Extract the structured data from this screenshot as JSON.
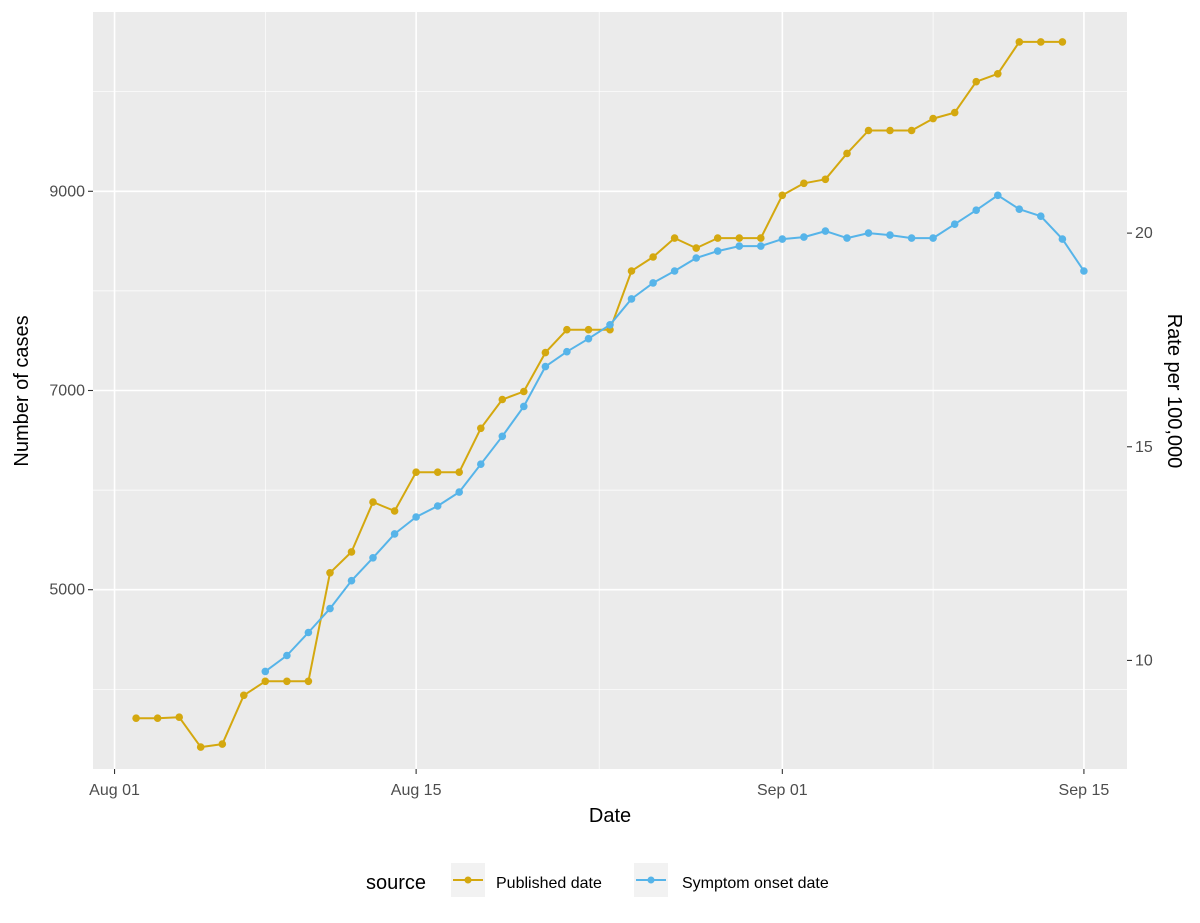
{
  "chart_data": {
    "type": "line",
    "xlabel": "Date",
    "ylabel": "Number of cases",
    "y2label": "Rate per 100,000",
    "x_ticks": [
      "Aug 01",
      "Aug 15",
      "Sep 01",
      "Sep 15"
    ],
    "x_tick_dates": [
      "2020-08-01",
      "2020-08-15",
      "2020-09-01",
      "2020-09-15"
    ],
    "xlim": [
      "2020-07-31",
      "2020-09-17"
    ],
    "y_ticks": [
      5000,
      7000,
      9000
    ],
    "ylim": [
      3200,
      10800
    ],
    "y2_ticks": [
      10,
      15,
      20
    ],
    "y2_scale_cases_per_unit": 429,
    "grid": true,
    "legend": {
      "title": "source",
      "position": "bottom",
      "entries": [
        "Published date",
        "Symptom onset date"
      ]
    },
    "series": [
      {
        "name": "Published date",
        "color": "#d4a80f",
        "x": [
          "2020-08-02",
          "2020-08-03",
          "2020-08-04",
          "2020-08-05",
          "2020-08-06",
          "2020-08-07",
          "2020-08-08",
          "2020-08-09",
          "2020-08-10",
          "2020-08-11",
          "2020-08-12",
          "2020-08-13",
          "2020-08-14",
          "2020-08-15",
          "2020-08-16",
          "2020-08-17",
          "2020-08-18",
          "2020-08-19",
          "2020-08-20",
          "2020-08-21",
          "2020-08-22",
          "2020-08-23",
          "2020-08-24",
          "2020-08-25",
          "2020-08-26",
          "2020-08-27",
          "2020-08-28",
          "2020-08-29",
          "2020-08-30",
          "2020-08-31",
          "2020-09-01",
          "2020-09-02",
          "2020-09-03",
          "2020-09-04",
          "2020-09-05",
          "2020-09-06",
          "2020-09-07",
          "2020-09-08",
          "2020-09-09",
          "2020-09-10",
          "2020-09-11",
          "2020-09-12",
          "2020-09-13",
          "2020-09-14"
        ],
        "values": [
          3710,
          3710,
          3720,
          3420,
          3450,
          3940,
          4080,
          4080,
          4080,
          5170,
          5380,
          5880,
          5790,
          6180,
          6180,
          6180,
          6620,
          6910,
          6990,
          7380,
          7610,
          7610,
          7610,
          8200,
          8340,
          8530,
          8430,
          8530,
          8530,
          8530,
          8960,
          9080,
          9120,
          9380,
          9610,
          9610,
          9610,
          9730,
          9790,
          10100,
          10180,
          10500,
          10500,
          10500
        ]
      },
      {
        "name": "Symptom onset date",
        "color": "#56b4e9",
        "x": [
          "2020-08-08",
          "2020-08-09",
          "2020-08-10",
          "2020-08-11",
          "2020-08-12",
          "2020-08-13",
          "2020-08-14",
          "2020-08-15",
          "2020-08-16",
          "2020-08-17",
          "2020-08-18",
          "2020-08-19",
          "2020-08-20",
          "2020-08-21",
          "2020-08-22",
          "2020-08-23",
          "2020-08-24",
          "2020-08-25",
          "2020-08-26",
          "2020-08-27",
          "2020-08-28",
          "2020-08-29",
          "2020-08-30",
          "2020-08-31",
          "2020-09-01",
          "2020-09-02",
          "2020-09-03",
          "2020-09-04",
          "2020-09-05",
          "2020-09-06",
          "2020-09-07",
          "2020-09-08",
          "2020-09-09",
          "2020-09-10",
          "2020-09-11",
          "2020-09-12",
          "2020-09-13",
          "2020-09-14",
          "2020-09-15"
        ],
        "values": [
          4180,
          4340,
          4570,
          4810,
          5090,
          5320,
          5560,
          5730,
          5840,
          5980,
          6260,
          6540,
          6840,
          7240,
          7390,
          7520,
          7660,
          7920,
          8080,
          8200,
          8330,
          8400,
          8450,
          8450,
          8520,
          8540,
          8600,
          8530,
          8580,
          8560,
          8530,
          8530,
          8670,
          8810,
          8960,
          8820,
          8750,
          8520,
          8200
        ]
      }
    ]
  }
}
